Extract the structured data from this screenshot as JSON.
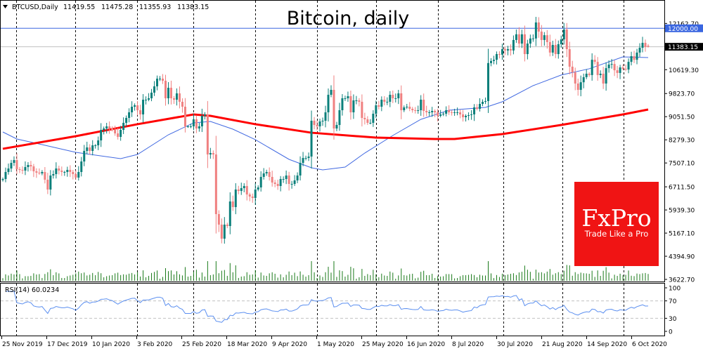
{
  "header": {
    "symbol": "BTCUSD,Daily",
    "open": "11419.55",
    "high": "11475.28",
    "low": "11355.93",
    "close": "11383.15"
  },
  "title": "Bitcoin, daily",
  "logo": {
    "brand": "FxPro",
    "tagline": "Trade Like a Pro",
    "color": "#f01414"
  },
  "colors": {
    "bull": "#0a7f7a",
    "bear": "#f08080",
    "volume": "#1a7a1a",
    "ma_slow": "#ff0000",
    "ma_fast": "#4169e1",
    "rsi": "#5b8ff0",
    "level_line": "#3a66e0",
    "last_price_bg": "#000000"
  },
  "chart_data": [
    {
      "type": "candlestick",
      "title": "Bitcoin, daily",
      "symbol": "BTCUSD",
      "timeframe": "Daily",
      "ylim": [
        3622.7,
        12162.7
      ],
      "y_ticks": [
        "12162.70",
        "10619.30",
        "9823.70",
        "9051.50",
        "8279.30",
        "7507.10",
        "6711.50",
        "5939.30",
        "5167.10",
        "4394.90",
        "3622.70"
      ],
      "y_tick_values": [
        12162.7,
        10619.3,
        9823.7,
        9051.5,
        8279.3,
        7507.1,
        6711.5,
        5939.3,
        5167.1,
        4394.9,
        3622.7
      ],
      "x_ticks": [
        "25 Nov 2019",
        "17 Dec 2019",
        "10 Jan 2020",
        "3 Feb 2020",
        "25 Feb 2020",
        "18 Mar 2020",
        "9 Apr 2020",
        "1 May 2020",
        "25 May 2020",
        "16 Jun 2020",
        "8 Jul 2020",
        "30 Jul 2020",
        "21 Aug 2020",
        "14 Sep 2020",
        "6 Oct 2020"
      ],
      "closes": [
        6972,
        7206,
        7323,
        7510,
        7604,
        7300,
        7276,
        7253,
        7370,
        7440,
        7393,
        7229,
        7183,
        7159,
        7206,
        6949,
        6621,
        7089,
        7136,
        7323,
        7253,
        7206,
        7206,
        7276,
        7206,
        7136,
        7019,
        7206,
        7557,
        7909,
        8026,
        7909,
        8096,
        8096,
        8260,
        8611,
        8658,
        8728,
        8658,
        8611,
        8494,
        8377,
        8611,
        8846,
        9010,
        9197,
        9384,
        9431,
        9267,
        9127,
        9618,
        9618,
        9665,
        9853,
        10063,
        10320,
        10320,
        10250,
        9665,
        10016,
        9665,
        9618,
        9829,
        9548,
        9384,
        8728,
        8728,
        8728,
        8963,
        8658,
        8728,
        9080,
        9127,
        7791,
        7838,
        7791,
        5801,
        5450,
        4982,
        5450,
        5403,
        6223,
        6035,
        6621,
        6574,
        6667,
        6738,
        6457,
        6387,
        6340,
        6621,
        6691,
        7042,
        7159,
        7206,
        7042,
        6855,
        6808,
        6738,
        6972,
        6972,
        7089,
        6808,
        6808,
        6925,
        7089,
        7510,
        7674,
        7674,
        7721,
        8916,
        8775,
        8728,
        8892,
        8916,
        9197,
        9782,
        9946,
        8658,
        8775,
        9267,
        9665,
        9665,
        9735,
        9197,
        9595,
        9595,
        9548,
        9010,
        8963,
        8846,
        8846,
        9150,
        9431,
        9384,
        9618,
        9548,
        9548,
        9782,
        9665,
        9665,
        9829,
        9267,
        9361,
        9384,
        9314,
        9267,
        9244,
        9267,
        9618,
        9244,
        9197,
        9197,
        9244,
        9197,
        9080,
        9127,
        9150,
        9267,
        9197,
        9174,
        9197,
        9197,
        9127,
        9033,
        9080,
        9103,
        9127,
        9361,
        9314,
        9478,
        9548,
        9572,
        10840,
        10910,
        10950,
        11140,
        11120,
        11305,
        11260,
        11305,
        11260,
        11610,
        11800,
        11490,
        11800,
        11140,
        11490,
        11660,
        11660,
        12195,
        11890,
        11610,
        11770,
        11540,
        11190,
        11445,
        11140,
        11470,
        11630,
        11960,
        11305,
        10720,
        10530,
        10157,
        9946,
        10200,
        10370,
        10485,
        10440,
        10950,
        10880,
        10440,
        10485,
        10157,
        10670,
        10790,
        10810,
        10600,
        10510,
        10695,
        10650,
        10625,
        10880,
        11070,
        10950,
        11190,
        11350,
        11515,
        11375,
        11383.15
      ],
      "ma_slow": {
        "name": "MA slow (red)",
        "points": [
          [
            0,
            7980
          ],
          [
            26,
            8400
          ],
          [
            48,
            8800
          ],
          [
            68,
            9127
          ],
          [
            74,
            9080
          ],
          [
            90,
            8800
          ],
          [
            110,
            8516
          ],
          [
            133,
            8353
          ],
          [
            154,
            8306
          ],
          [
            161,
            8306
          ],
          [
            178,
            8470
          ],
          [
            199,
            8775
          ],
          [
            221,
            9127
          ],
          [
            230,
            9290
          ]
        ]
      },
      "ma_fast": {
        "name": "MA fast (blue)",
        "points": [
          [
            0,
            8541
          ],
          [
            5,
            8307
          ],
          [
            14,
            8120
          ],
          [
            26,
            7862
          ],
          [
            42,
            7651
          ],
          [
            48,
            7791
          ],
          [
            59,
            8447
          ],
          [
            68,
            8846
          ],
          [
            74,
            8892
          ],
          [
            82,
            8635
          ],
          [
            90,
            8284
          ],
          [
            102,
            7628
          ],
          [
            110,
            7347
          ],
          [
            114,
            7276
          ],
          [
            122,
            7370
          ],
          [
            129,
            7838
          ],
          [
            139,
            8424
          ],
          [
            149,
            8963
          ],
          [
            159,
            9267
          ],
          [
            172,
            9361
          ],
          [
            178,
            9548
          ],
          [
            189,
            10087
          ],
          [
            199,
            10440
          ],
          [
            209,
            10650
          ],
          [
            221,
            11047
          ],
          [
            230,
            11023
          ]
        ]
      },
      "levels": [
        {
          "label": "12000.00",
          "value": 12000.0
        },
        {
          "label": "11383.15",
          "value": 11383.15
        }
      ]
    },
    {
      "type": "line",
      "title": "RSI(14)",
      "label": "RSI(14) 60.0234",
      "period": 14,
      "last_value": 60.0234,
      "ylim": [
        0,
        100
      ],
      "y_ticks": [
        "100",
        "70",
        "30",
        "0"
      ],
      "levels": [
        70,
        30
      ]
    }
  ]
}
